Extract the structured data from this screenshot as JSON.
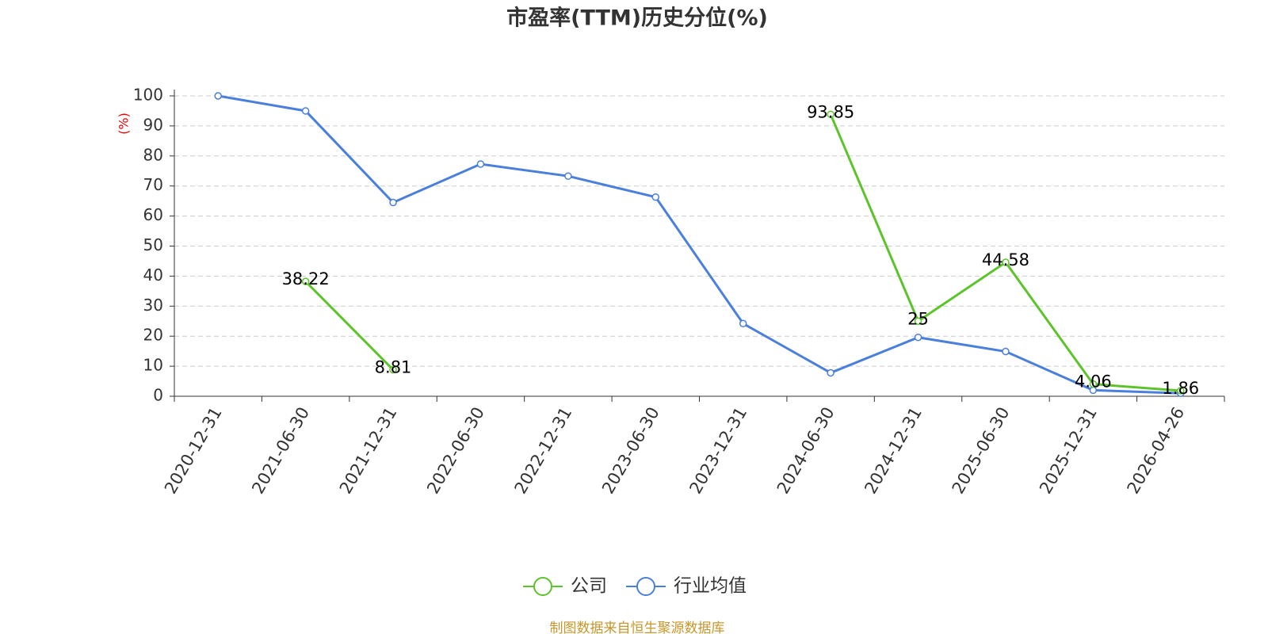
{
  "chart_data": {
    "type": "line",
    "title": "市盈率(TTM)历史分位(%)",
    "y_label": "(%)",
    "categories": [
      "2020-12-31",
      "2021-06-30",
      "2021-12-31",
      "2022-06-30",
      "2022-12-31",
      "2023-06-30",
      "2023-12-31",
      "2024-06-30",
      "2024-12-31",
      "2025-06-30",
      "2025-12-31",
      "2026-04-26"
    ],
    "series": [
      {
        "name": "公司",
        "color": "#5cc42a",
        "values": [
          null,
          38.22,
          8.81,
          null,
          null,
          null,
          null,
          93.85,
          25,
          44.58,
          4.06,
          1.86
        ],
        "data_labels": true
      },
      {
        "name": "行业均值",
        "color": "#4a7fdc",
        "values": [
          100,
          95,
          64.5,
          77.3,
          73.3,
          66.3,
          24.2,
          7.8,
          19.6,
          14.9,
          2,
          1
        ],
        "data_labels": false
      }
    ],
    "ylim": [
      0,
      100
    ],
    "yticks": [
      0,
      10,
      20,
      30,
      40,
      50,
      60,
      70,
      80,
      90,
      100
    ],
    "grid": true,
    "legend": "bottom",
    "source": "制图数据来自恒生聚源数据库"
  }
}
